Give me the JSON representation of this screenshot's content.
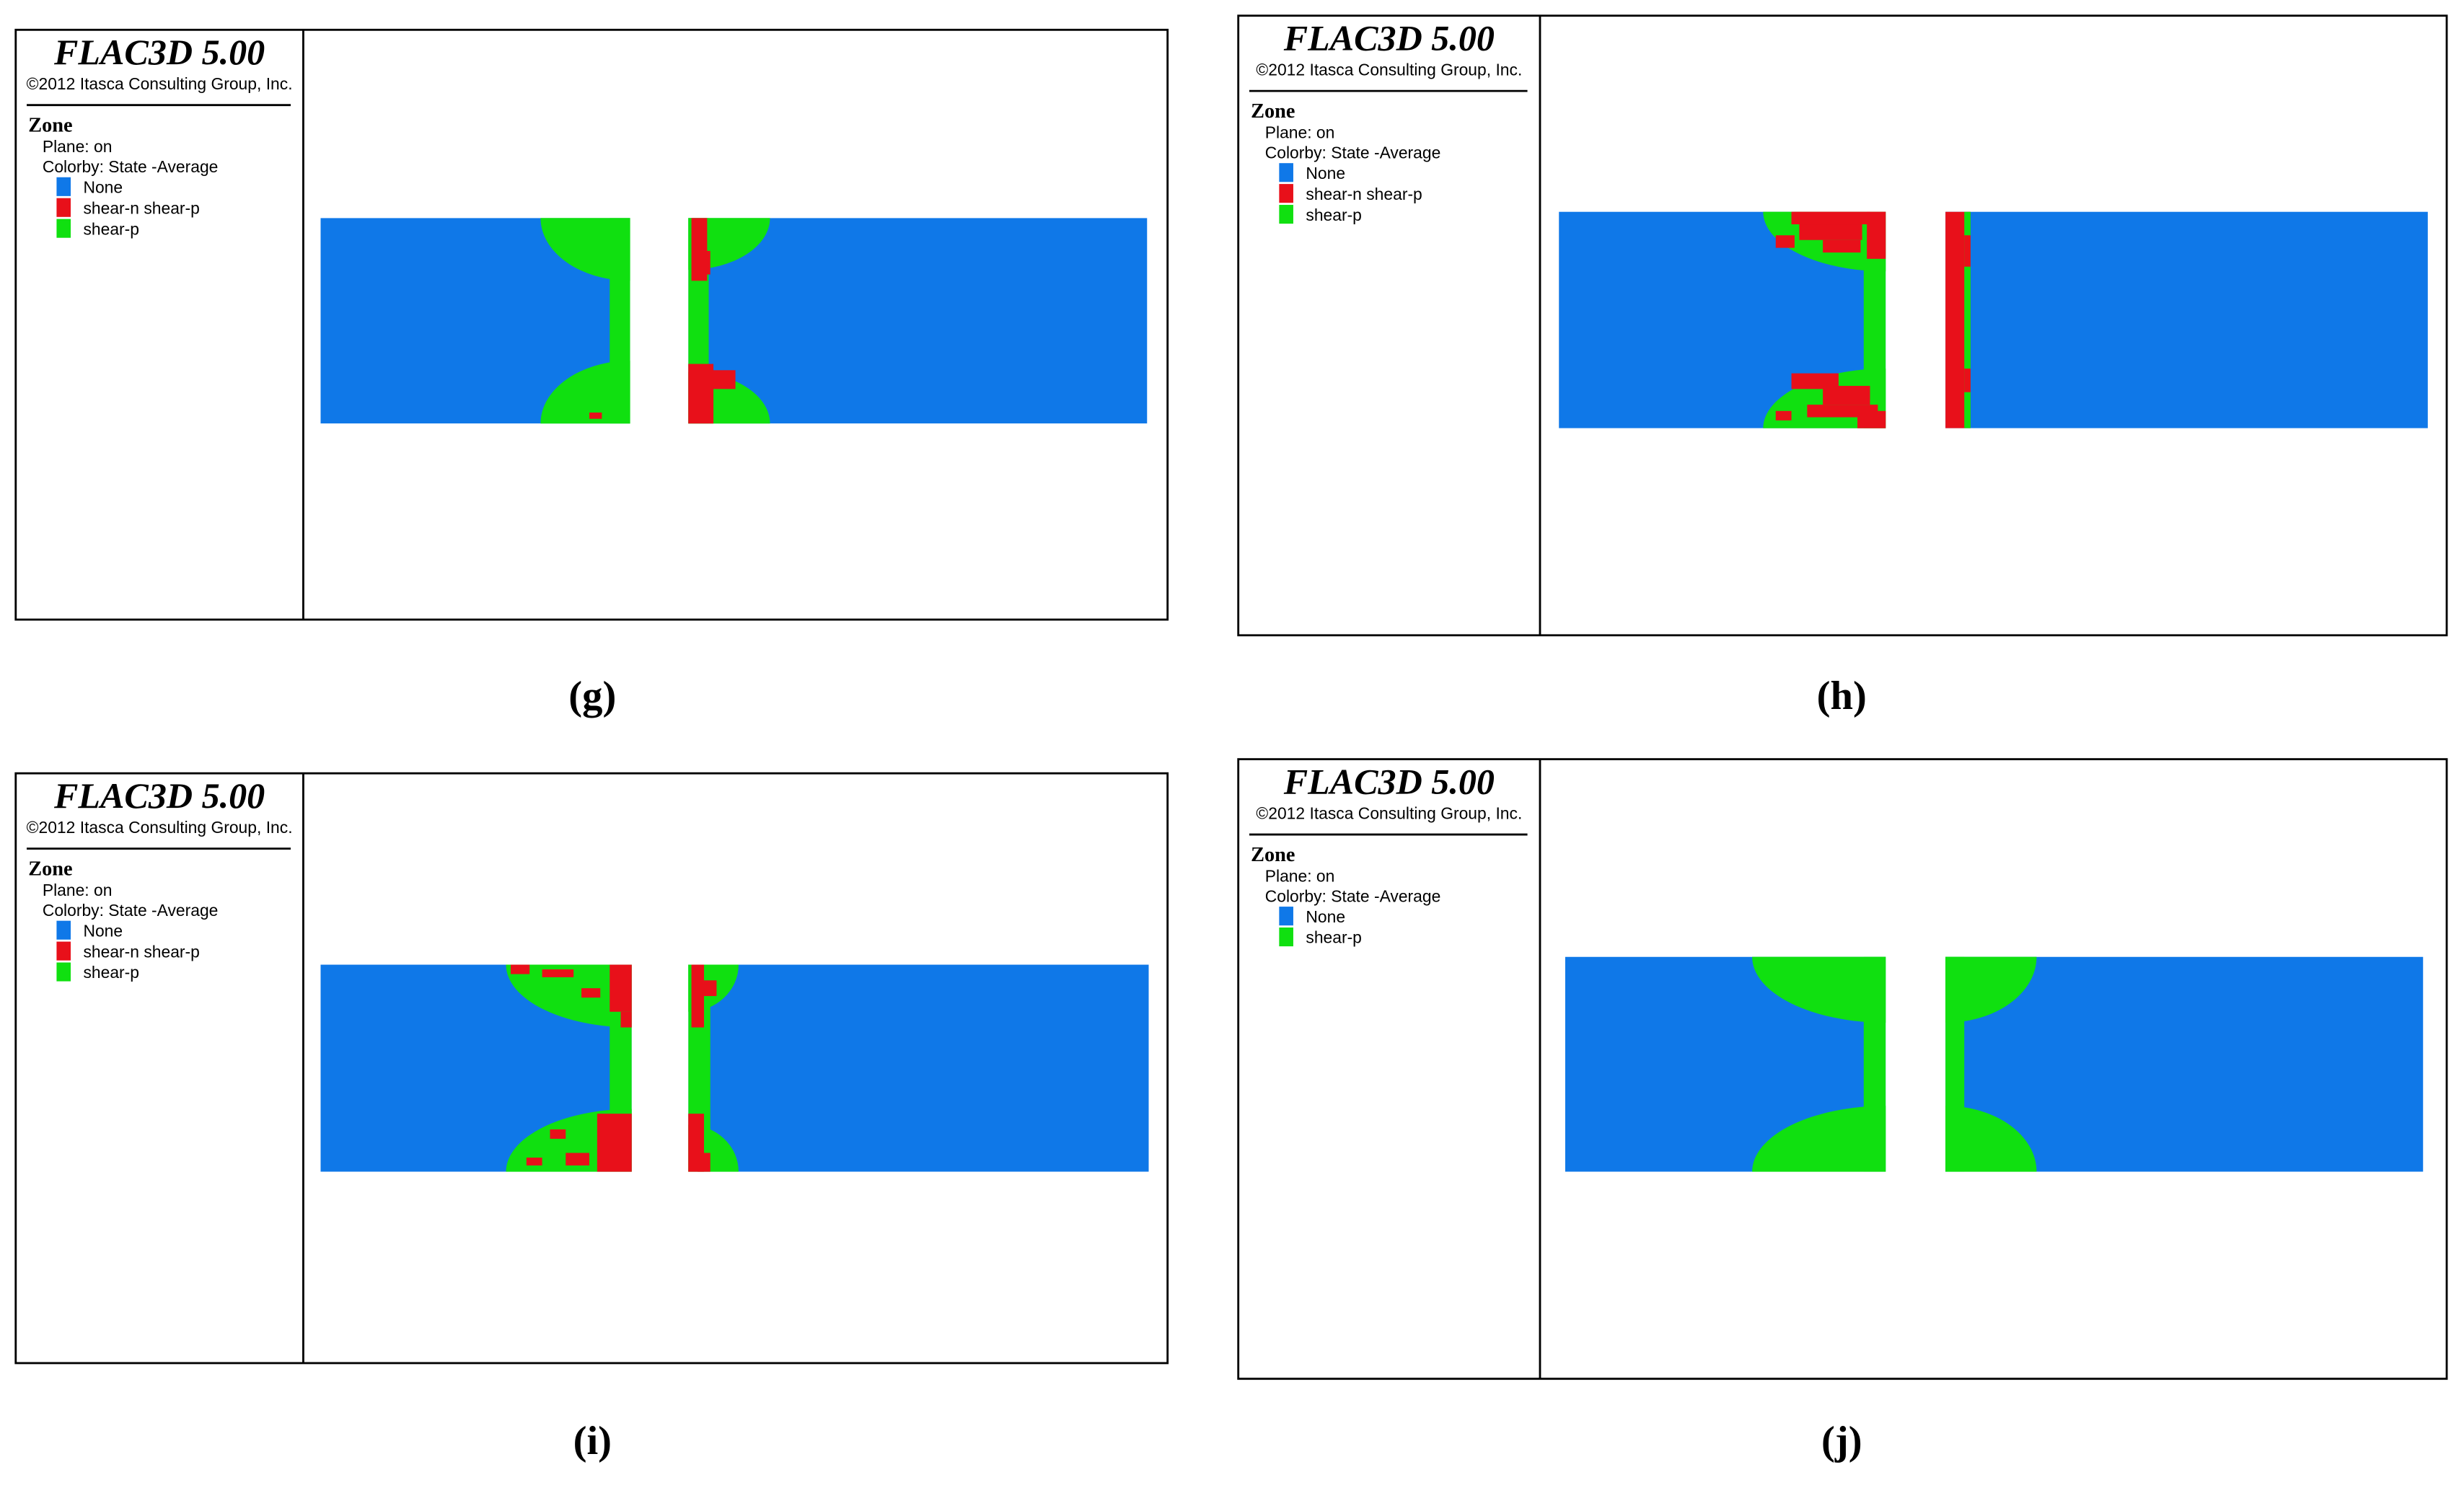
{
  "panels": [
    {
      "title": "FLAC3D 5.00",
      "copyright": "©2012 Itasca Consulting Group, Inc.",
      "zone": "Zone",
      "plane": "Plane: on",
      "colorby": "Colorby: State  -Average",
      "legend": [
        "None",
        "shear-n shear-p",
        "shear-p"
      ],
      "caption": "(g)"
    },
    {
      "title": "FLAC3D 5.00",
      "copyright": "©2012 Itasca Consulting Group, Inc.",
      "zone": "Zone",
      "plane": "Plane: on",
      "colorby": "Colorby: State  -Average",
      "legend": [
        "None",
        "shear-n shear-p",
        "shear-p"
      ],
      "caption": "(h)"
    },
    {
      "title": "FLAC3D 5.00",
      "copyright": "©2012 Itasca Consulting Group, Inc.",
      "zone": "Zone",
      "plane": "Plane: on",
      "colorby": "Colorby: State  -Average",
      "legend": [
        "None",
        "shear-n shear-p",
        "shear-p"
      ],
      "caption": "(i)"
    },
    {
      "title": "FLAC3D 5.00",
      "copyright": "©2012 Itasca Consulting Group, Inc.",
      "zone": "Zone",
      "plane": "Plane: on",
      "colorby": "Colorby: State  -Average",
      "legend": [
        "None",
        "shear-p"
      ],
      "caption": "(j)"
    }
  ]
}
